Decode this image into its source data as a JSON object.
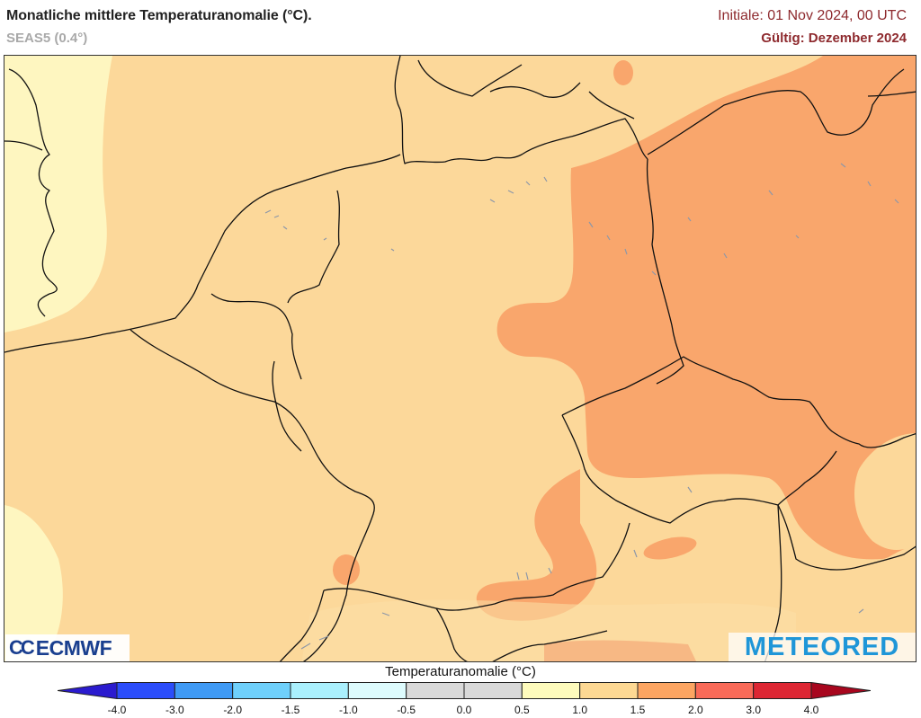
{
  "header": {
    "title": "Monatliche mittlere Temperaturanomalie (°C).",
    "subtitle": "SEAS5 (0.4°)",
    "initial": "Initiale: 01 Nov 2024, 00 UTC",
    "valid": "Gültig: Dezember 2024",
    "accent_color": "#8e2a2e"
  },
  "map": {
    "region": "Central Europe",
    "fill_colors": {
      "0.5_to_1.0": "#fef6c0",
      "1.0_to_1.5": "#fcd89a",
      "1.5_to_2.0": "#f9a66c"
    }
  },
  "logos": {
    "left": "ECMWF",
    "left_mark": "CC",
    "right": "METEORED"
  },
  "colorbar": {
    "title": "Temperaturanomalie (°C)",
    "ticks": [
      "-4.0",
      "-3.0",
      "-2.0",
      "-1.5",
      "-1.0",
      "-0.5",
      "0.0",
      "0.5",
      "1.0",
      "1.5",
      "2.0",
      "3.0",
      "4.0"
    ],
    "bins": [
      {
        "range": "< -4.0",
        "color": "#2b1bcf"
      },
      {
        "range": "-4.0 to -3.0",
        "color": "#2b4dfa"
      },
      {
        "range": "-3.0 to -2.0",
        "color": "#3f9af5"
      },
      {
        "range": "-2.0 to -1.5",
        "color": "#6fd0fb"
      },
      {
        "range": "-1.5 to -1.0",
        "color": "#aaf0fd"
      },
      {
        "range": "-1.0 to -0.5",
        "color": "#ddfbfd"
      },
      {
        "range": "-0.5 to 0.0",
        "color": "#d9d9d9"
      },
      {
        "range": "0.0 to 0.5",
        "color": "#d9d9d9"
      },
      {
        "range": "0.5 to 1.0",
        "color": "#fefbbc"
      },
      {
        "range": "1.0 to 1.5",
        "color": "#fdd893"
      },
      {
        "range": "1.5 to 2.0",
        "color": "#fca562"
      },
      {
        "range": "2.0 to 3.0",
        "color": "#f96a58"
      },
      {
        "range": "3.0 to 4.0",
        "color": "#dd2633"
      },
      {
        "range": "> 4.0",
        "color": "#a8061e"
      }
    ]
  }
}
